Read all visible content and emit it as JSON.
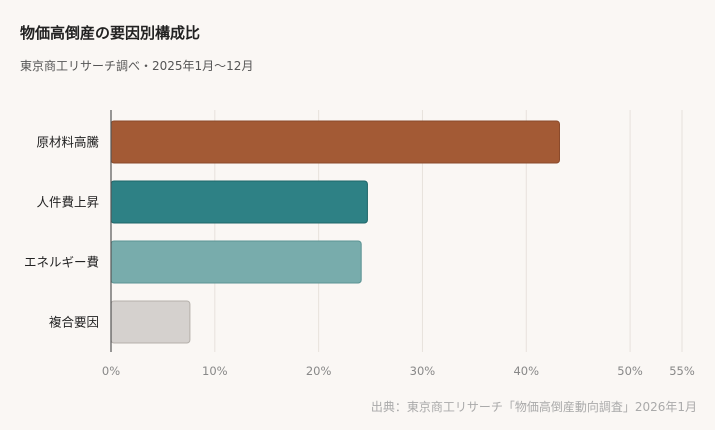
{
  "header": {
    "title": "物価高倒産の要因別構成比",
    "subtitle": "東京商工リサーチ調べ・2025年1月〜12月"
  },
  "footer": {
    "source": "出典：東京商工リサーチ「物価高倒産動向調査」2026年1月"
  },
  "colors": {
    "background": "#faf7f4",
    "grid": "#e7e2dc",
    "axis": "#555555",
    "tick_text": "#888888",
    "category_text": "#222222"
  },
  "chart_data": {
    "type": "bar",
    "orientation": "horizontal",
    "categories": [
      "原材料高騰",
      "人件費上昇",
      "エネルギー費",
      "複合要因"
    ],
    "values": [
      43.2,
      24.7,
      24.1,
      7.6
    ],
    "bar_colors": [
      "#a35a35",
      "#2e8185",
      "#78acac",
      "#d5d1ce"
    ],
    "bar_stroke_colors": [
      "#8a4a2b",
      "#1f6669",
      "#5b9393",
      "#b5b0ab"
    ],
    "xlim": [
      0,
      55
    ],
    "xticks": [
      0,
      10,
      20,
      30,
      40,
      50,
      55
    ],
    "xtick_labels": [
      "0%",
      "10%",
      "20%",
      "30%",
      "40%",
      "50%",
      "55%"
    ],
    "grid": true,
    "xlabel": "",
    "ylabel": ""
  }
}
